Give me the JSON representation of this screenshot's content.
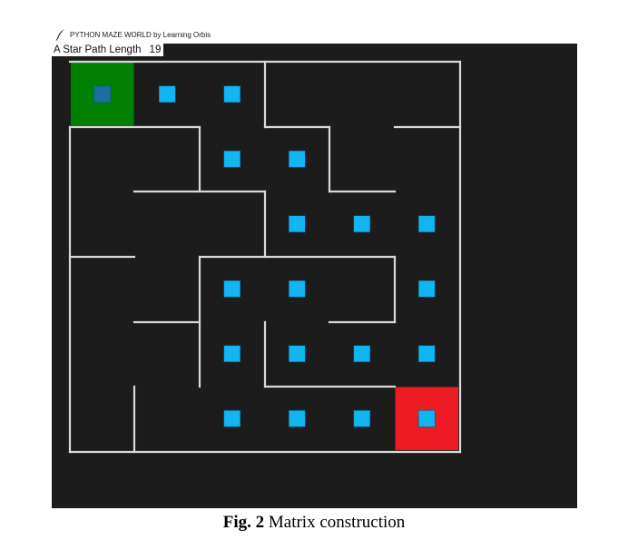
{
  "window": {
    "title": "PYTHON MAZE WORLD by Learning Orbis",
    "icon": "feather-icon"
  },
  "status": {
    "label": "A Star Path Length",
    "value": "19"
  },
  "maze": {
    "rows": 6,
    "cols": 6,
    "start_cell": [
      1,
      1
    ],
    "goal_cell": [
      6,
      6
    ],
    "path_cells": [
      [
        1,
        1
      ],
      [
        1,
        2
      ],
      [
        1,
        3
      ],
      [
        2,
        3
      ],
      [
        2,
        4
      ],
      [
        3,
        4
      ],
      [
        3,
        5
      ],
      [
        3,
        6
      ],
      [
        4,
        6
      ],
      [
        5,
        6
      ],
      [
        5,
        5
      ],
      [
        5,
        4
      ],
      [
        5,
        3
      ],
      [
        4,
        3
      ],
      [
        4,
        4
      ],
      [
        6,
        3
      ],
      [
        6,
        4
      ],
      [
        6,
        5
      ],
      [
        6,
        6
      ]
    ],
    "colors": {
      "background": "#1c1c1c",
      "wall": "#d9d9d9",
      "start": "#008000",
      "goal": "#ed1c24",
      "path_marker": "#11b5ef",
      "start_marker": "#1a6ea0"
    }
  },
  "caption": {
    "prefix": "Fig. 2",
    "text": "Matrix construction"
  }
}
